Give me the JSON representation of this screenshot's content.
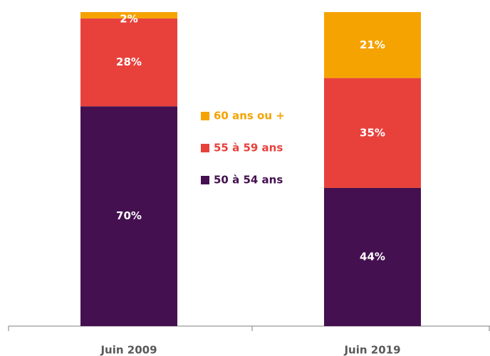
{
  "chart_data": {
    "type": "stacked-bar",
    "categories": [
      "Juin 2009",
      "Juin 2019"
    ],
    "series": [
      {
        "name": "50 à 54 ans",
        "color": "#44104f",
        "values": [
          70,
          44
        ],
        "value_labels": [
          "70%",
          "44%"
        ]
      },
      {
        "name": "55 à 59 ans",
        "color": "#e8413c",
        "values": [
          28,
          35
        ],
        "value_labels": [
          "28%",
          "35%"
        ]
      },
      {
        "name": "60 ans ou +",
        "color": "#f5a300",
        "values": [
          2,
          21
        ],
        "value_labels": [
          "2%",
          "21%"
        ]
      }
    ],
    "ylim": [
      0,
      100
    ]
  }
}
